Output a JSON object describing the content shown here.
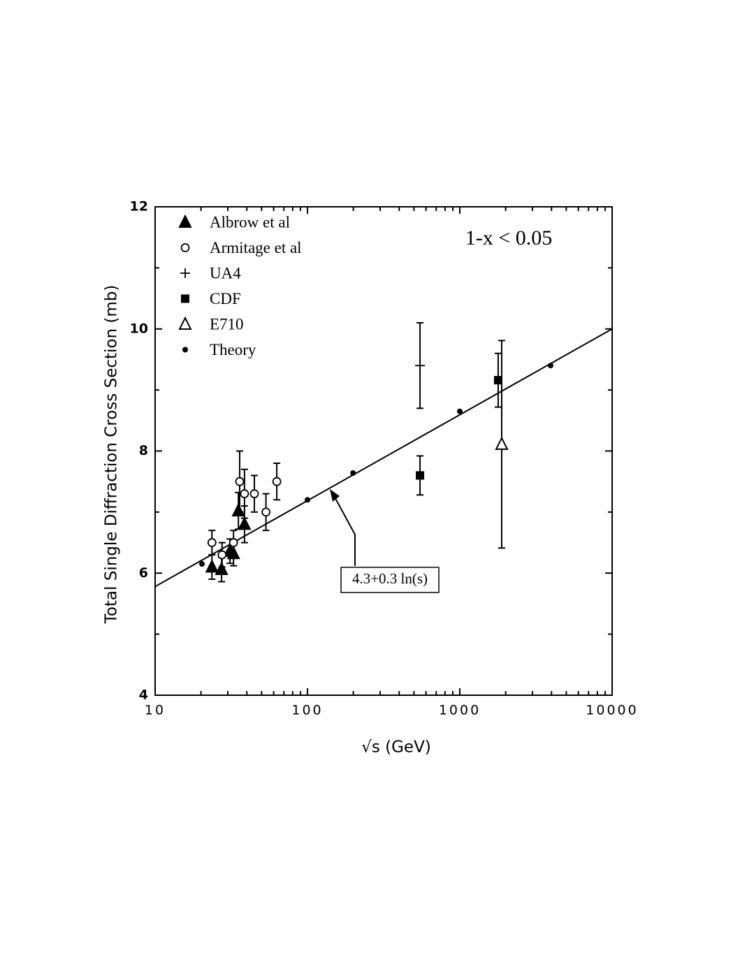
{
  "chart_data": {
    "type": "scatter",
    "x_label": "√s (GeV)",
    "y_label": "Total Single Diffraction Cross Section (mb)",
    "x_log": true,
    "log_minor_ticks": true,
    "xlim": [
      10,
      10000
    ],
    "xticks": [
      10,
      100,
      1000,
      10000
    ],
    "ylim": [
      4,
      12
    ],
    "yticks": [
      4,
      6,
      8,
      10,
      12
    ],
    "yminor_ticks": [
      5,
      7,
      9,
      11
    ],
    "mirror_ticks": true,
    "legend": "upper left",
    "annotation": "1-x  <  0.05",
    "fit_line": {
      "label": "4.3+0.3 ln(s)",
      "x": [
        10,
        10000
      ],
      "values": [
        5.78,
        10.0
      ]
    },
    "series": [
      {
        "name": "Albrow et al",
        "marker": "triangle-filled",
        "color": "#000000",
        "x": [
          23.6,
          27.3,
          31.0,
          32.7,
          35.2,
          38.6
        ],
        "values": [
          6.1,
          6.06,
          6.36,
          6.32,
          7.02,
          6.8
        ],
        "errors": [
          0.2,
          0.2,
          0.2,
          0.2,
          0.3,
          0.3
        ]
      },
      {
        "name": "Armitage et al",
        "marker": "circle-open",
        "color": "#000000",
        "x": [
          23.6,
          27.5,
          32.7,
          35.9,
          38.6,
          44.8,
          53.4,
          62.9
        ],
        "values": [
          6.5,
          6.3,
          6.5,
          7.5,
          7.3,
          7.3,
          7.0,
          7.5
        ],
        "errors": [
          0.2,
          0.2,
          0.2,
          0.5,
          0.4,
          0.3,
          0.3,
          0.3
        ]
      },
      {
        "name": "UA4",
        "marker": "plus",
        "color": "#000000",
        "x": [
          548
        ],
        "values": [
          9.4
        ],
        "errors": [
          0.7
        ]
      },
      {
        "name": "CDF",
        "marker": "square-filled",
        "color": "#000000",
        "x": [
          548,
          1786
        ],
        "values": [
          7.6,
          9.16
        ],
        "errors": [
          0.32,
          0.44
        ]
      },
      {
        "name": "E710",
        "marker": "triangle-open",
        "color": "#000000",
        "x": [
          1884
        ],
        "values": [
          8.11
        ],
        "errors": [
          1.7
        ]
      },
      {
        "name": "Theory",
        "marker": "dot",
        "color": "#000000",
        "x": [
          20.3,
          100,
          199,
          1000,
          3945
        ],
        "values": [
          6.15,
          7.2,
          7.64,
          8.65,
          9.4
        ]
      }
    ]
  }
}
